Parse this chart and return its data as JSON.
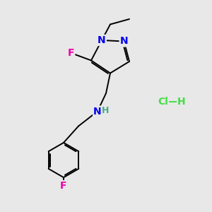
{
  "bg_color": "#e8e8e8",
  "bond_color": "#000000",
  "bond_lw": 1.4,
  "atom_colors": {
    "N": "#0000ee",
    "F": "#ee00aa",
    "C": "#000000",
    "H": "#44aa88",
    "Cl": "#44dd44"
  },
  "font_size": 10,
  "font_size_h": 9
}
